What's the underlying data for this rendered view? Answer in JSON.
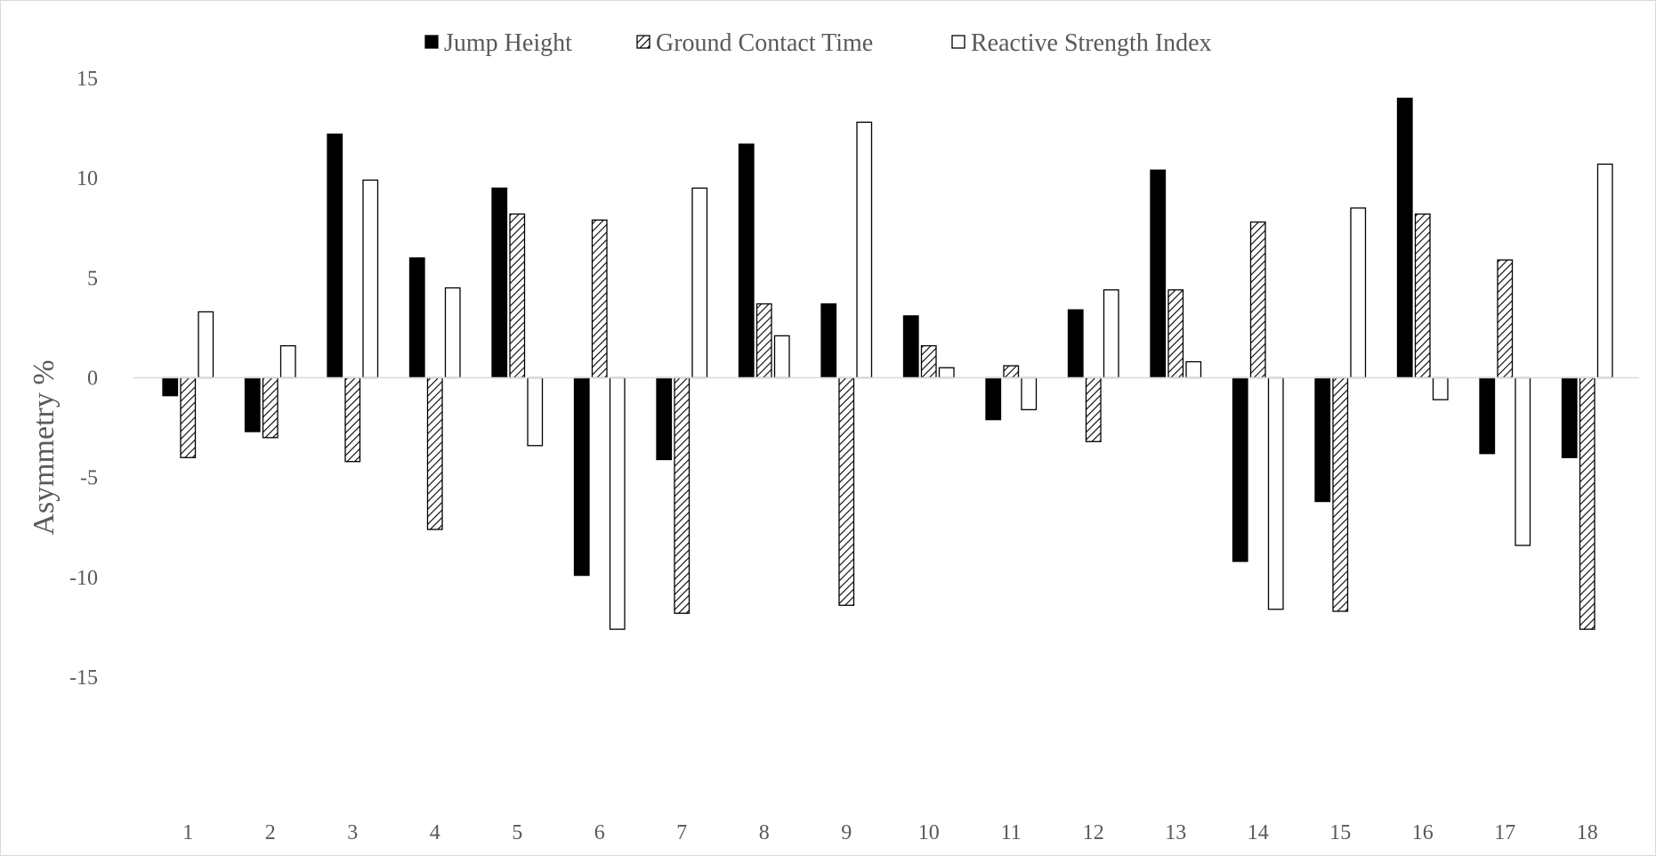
{
  "chart_data": {
    "type": "bar",
    "ylabel": "Asymmetry %",
    "xlabel": "",
    "ylim": [
      -15,
      15
    ],
    "yticks": [
      15,
      10,
      5,
      0,
      -5,
      -10,
      -15
    ],
    "grid": false,
    "legend_position": "top",
    "categories": [
      "1",
      "2",
      "3",
      "4",
      "5",
      "6",
      "7",
      "8",
      "9",
      "10",
      "11",
      "12",
      "13",
      "14",
      "15",
      "16",
      "17",
      "18"
    ],
    "series": [
      {
        "name": "Jump Height",
        "fill": "solid",
        "color": "#000000",
        "values": [
          -0.9,
          -2.7,
          12.2,
          6.0,
          9.5,
          -9.9,
          -4.1,
          11.7,
          3.7,
          3.1,
          -2.1,
          3.4,
          10.4,
          -9.2,
          -6.2,
          14.0,
          -3.8,
          -4.0
        ]
      },
      {
        "name": "Ground Contact Time",
        "fill": "hatched",
        "color": "#000000",
        "values": [
          -4.0,
          -3.0,
          -4.2,
          -7.6,
          8.2,
          7.9,
          -11.8,
          3.7,
          -11.4,
          1.6,
          0.6,
          -3.2,
          4.4,
          7.8,
          -11.7,
          8.2,
          5.9,
          -12.6
        ]
      },
      {
        "name": "Reactive Strength Index",
        "fill": "outline",
        "color": "#000000",
        "values": [
          3.3,
          1.6,
          9.9,
          4.5,
          -3.4,
          -12.6,
          9.5,
          2.1,
          12.8,
          0.5,
          -1.6,
          4.4,
          0.8,
          -11.6,
          8.5,
          -1.1,
          -8.4,
          10.7
        ]
      }
    ]
  }
}
